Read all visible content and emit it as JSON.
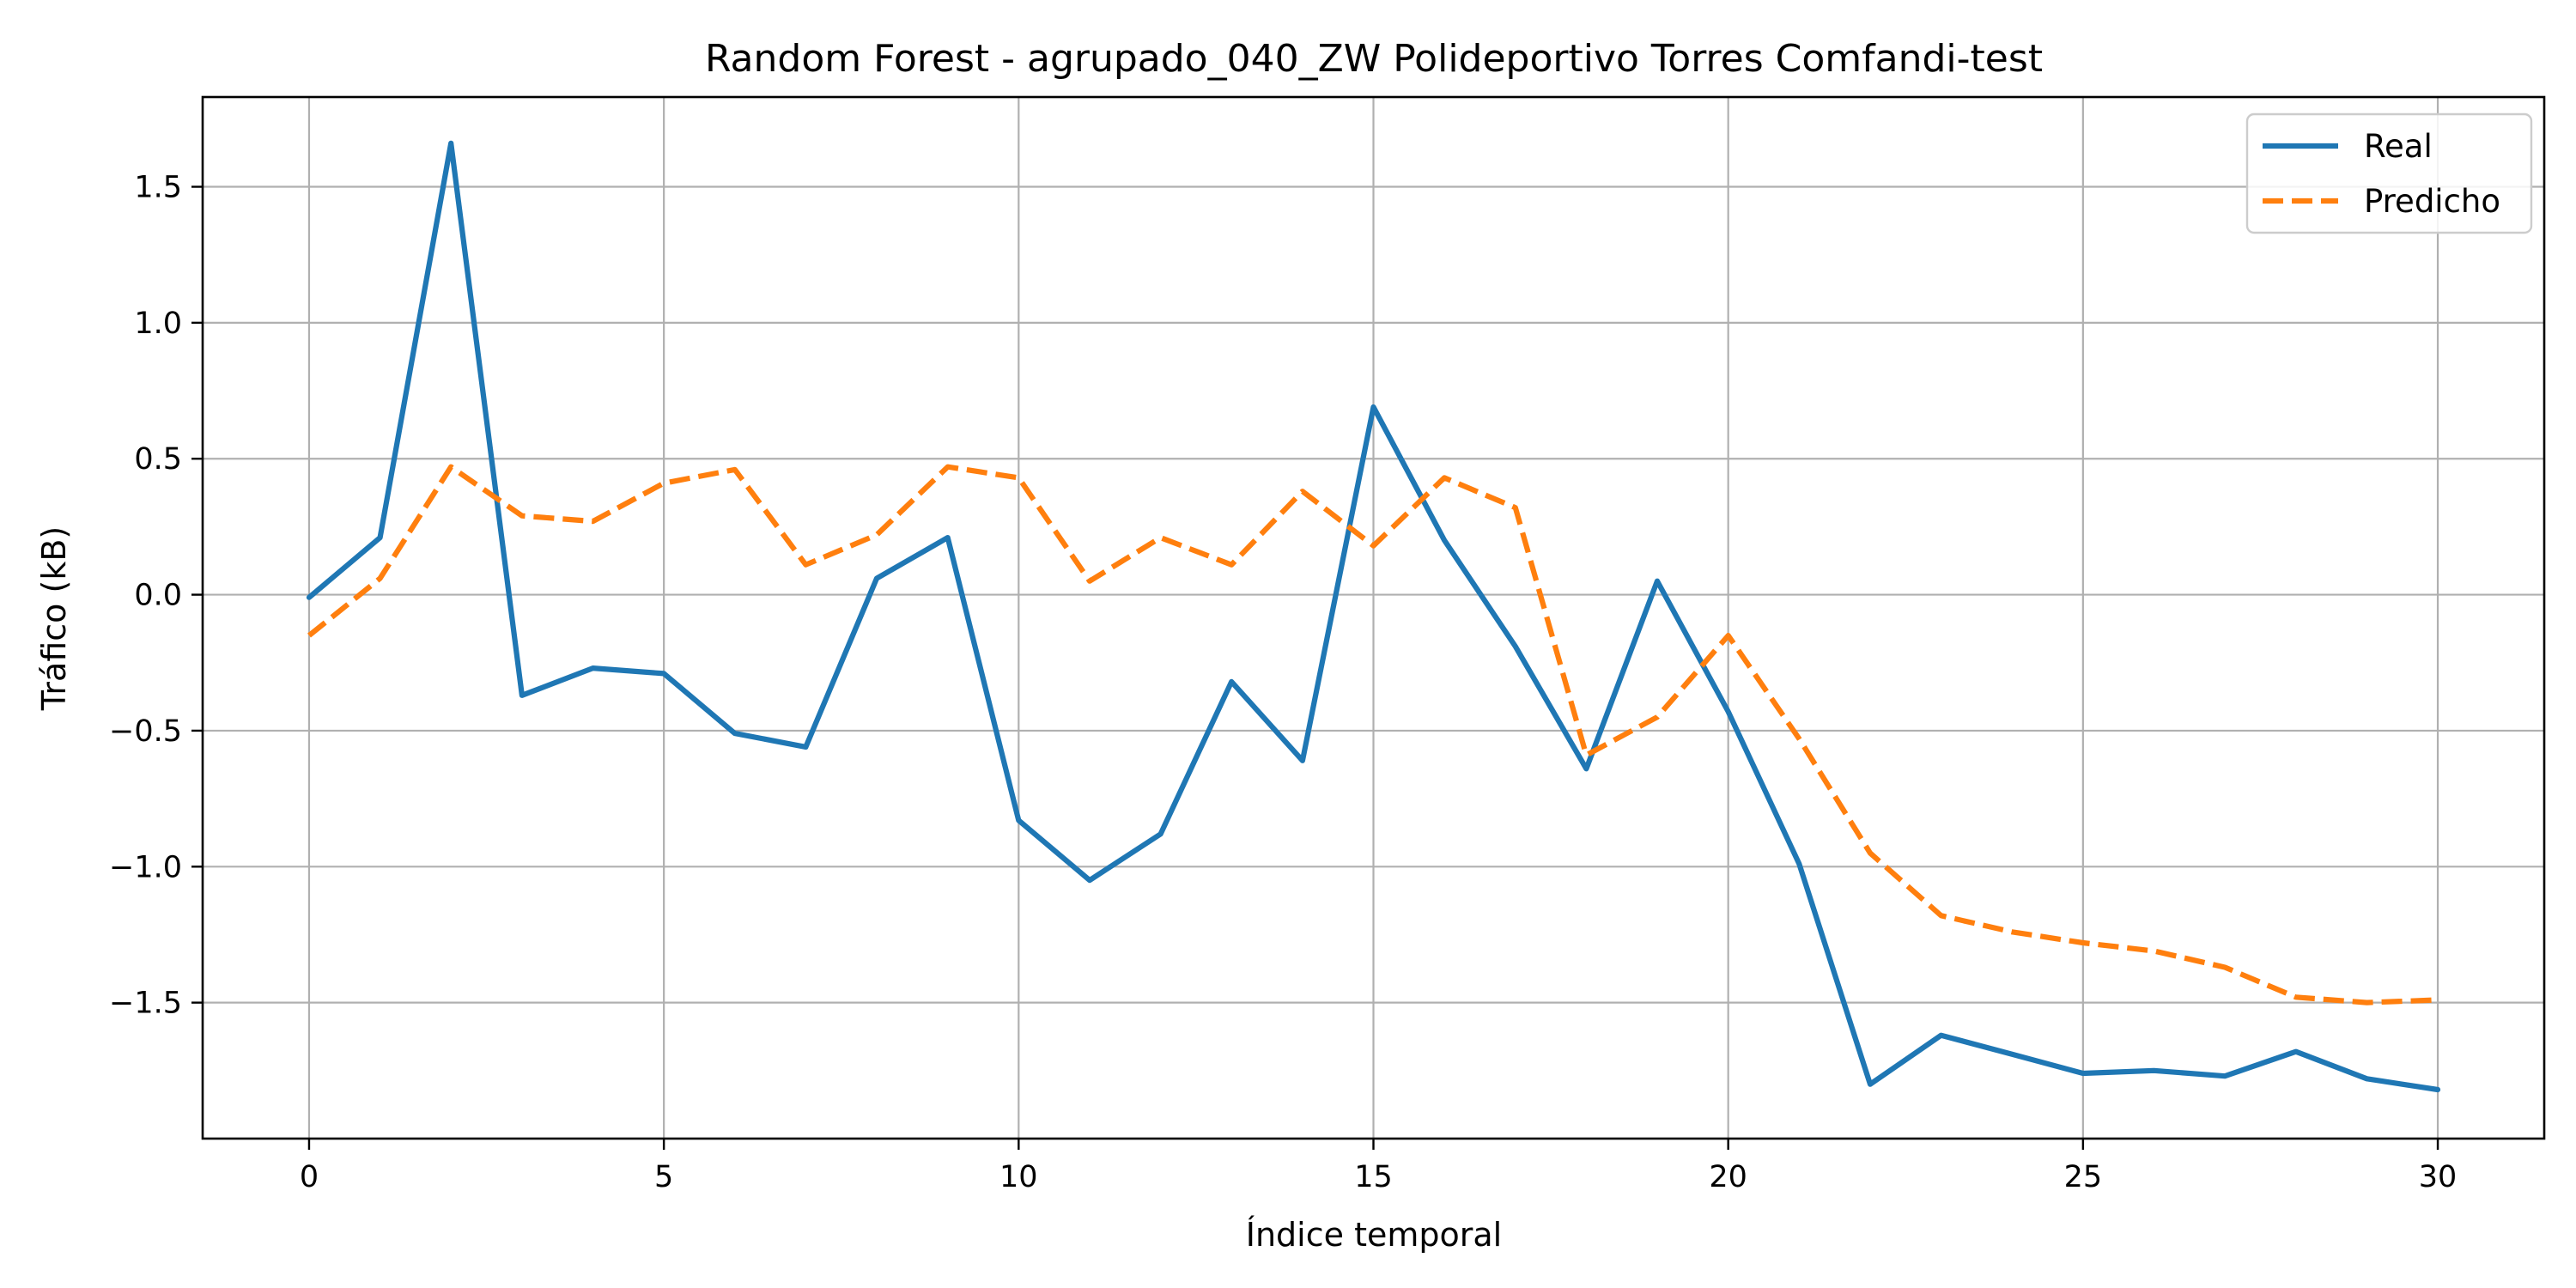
{
  "chart_data": {
    "type": "line",
    "title": "Random Forest - agrupado_040_ZW Polideportivo Torres Comfandi-test",
    "xlabel": "Índice temporal",
    "ylabel": "Tráfico (kB)",
    "xlim": [
      -1.5,
      31.5
    ],
    "ylim": [
      -2.0,
      1.83
    ],
    "xticks": [
      0,
      5,
      10,
      15,
      20,
      25,
      30
    ],
    "xtick_labels": [
      "0",
      "5",
      "10",
      "15",
      "20",
      "25",
      "30"
    ],
    "yticks": [
      -1.5,
      -1.0,
      -0.5,
      0.0,
      0.5,
      1.0,
      1.5
    ],
    "ytick_labels": [
      "−1.5",
      "−1.0",
      "−0.5",
      "0.0",
      "0.5",
      "1.0",
      "1.5"
    ],
    "grid": true,
    "legend_position": "top-right",
    "x": [
      0,
      1,
      2,
      3,
      4,
      5,
      6,
      7,
      8,
      9,
      10,
      11,
      12,
      13,
      14,
      15,
      16,
      17,
      18,
      19,
      20,
      21,
      22,
      23,
      24,
      25,
      26,
      27,
      28,
      29,
      30
    ],
    "series": [
      {
        "name": "Real",
        "style": "solid",
        "color": "#1f77b4",
        "values": [
          -0.01,
          0.21,
          1.66,
          -0.37,
          -0.27,
          -0.29,
          -0.51,
          -0.56,
          0.06,
          0.21,
          -0.83,
          -1.05,
          -0.88,
          -0.32,
          -0.61,
          0.69,
          0.2,
          -0.19,
          -0.64,
          0.05,
          -0.43,
          -0.99,
          -1.8,
          -1.62,
          -1.69,
          -1.76,
          -1.75,
          -1.77,
          -1.68,
          -1.78,
          -1.82
        ]
      },
      {
        "name": "Predicho",
        "style": "dashed",
        "color": "#ff7f0e",
        "values": [
          -0.15,
          0.06,
          0.47,
          0.29,
          0.27,
          0.41,
          0.46,
          0.11,
          0.22,
          0.47,
          0.43,
          0.05,
          0.21,
          0.11,
          0.38,
          0.18,
          0.43,
          0.32,
          -0.59,
          -0.45,
          -0.15,
          -0.53,
          -0.95,
          -1.18,
          -1.24,
          -1.28,
          -1.31,
          -1.37,
          -1.48,
          -1.5,
          -1.49
        ]
      }
    ]
  }
}
